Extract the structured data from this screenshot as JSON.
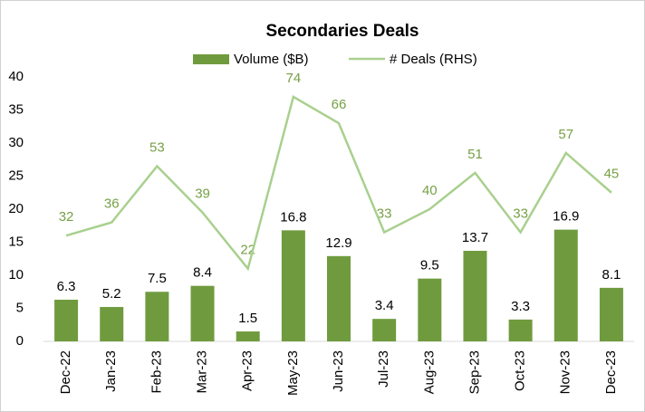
{
  "chart_data": {
    "type": "bar_line",
    "title": "Secondaries Deals",
    "categories": [
      "Dec-22",
      "Jan-23",
      "Feb-23",
      "Mar-23",
      "Apr-23",
      "May-23",
      "Jun-23",
      "Jul-23",
      "Aug-23",
      "Sep-23",
      "Oct-23",
      "Nov-23",
      "Dec-23"
    ],
    "series": [
      {
        "name": "Volume ($B)",
        "color": "#6f9b3e",
        "type": "bar",
        "values": [
          6.3,
          5.2,
          7.5,
          8.4,
          1.5,
          16.8,
          12.9,
          3.4,
          9.5,
          13.7,
          3.3,
          16.9,
          8.1
        ]
      },
      {
        "name": "# Deals (RHS)",
        "color": "#a9d08e",
        "label_color": "#76a045",
        "type": "line",
        "axis": "y2",
        "values": [
          32,
          36,
          53,
          39,
          22,
          74,
          66,
          33,
          40,
          51,
          33,
          57,
          45
        ]
      }
    ],
    "ylim": [
      0,
      40
    ],
    "yticks": [
      0,
      5,
      10,
      15,
      20,
      25,
      30,
      35,
      40
    ],
    "y2lim": [
      0,
      80
    ],
    "legend": "top",
    "grid": false
  }
}
